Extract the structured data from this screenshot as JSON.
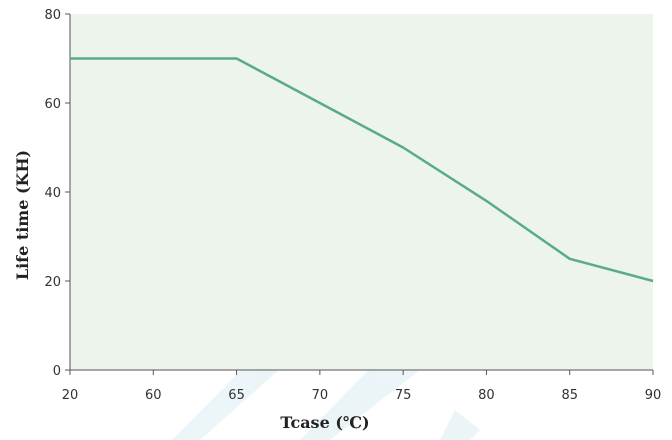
{
  "chart_data": {
    "type": "line",
    "title": "",
    "xlabel": "Tcase (℃)",
    "ylabel": "Life time (KH)",
    "x_ticks": [
      "20",
      "60",
      "65",
      "70",
      "75",
      "80",
      "85",
      "90"
    ],
    "y_ticks": [
      "0",
      "20",
      "40",
      "60",
      "80"
    ],
    "ylim": [
      0,
      80
    ],
    "grid": false,
    "legend": "none",
    "plot_background": "#ecf4ec",
    "line_color": "#5aaa8c",
    "series": [
      {
        "x": [
          "20",
          "65",
          "70",
          "75",
          "80",
          "85",
          "90"
        ],
        "values": [
          70,
          70,
          60,
          50,
          38,
          25,
          20
        ]
      }
    ]
  }
}
